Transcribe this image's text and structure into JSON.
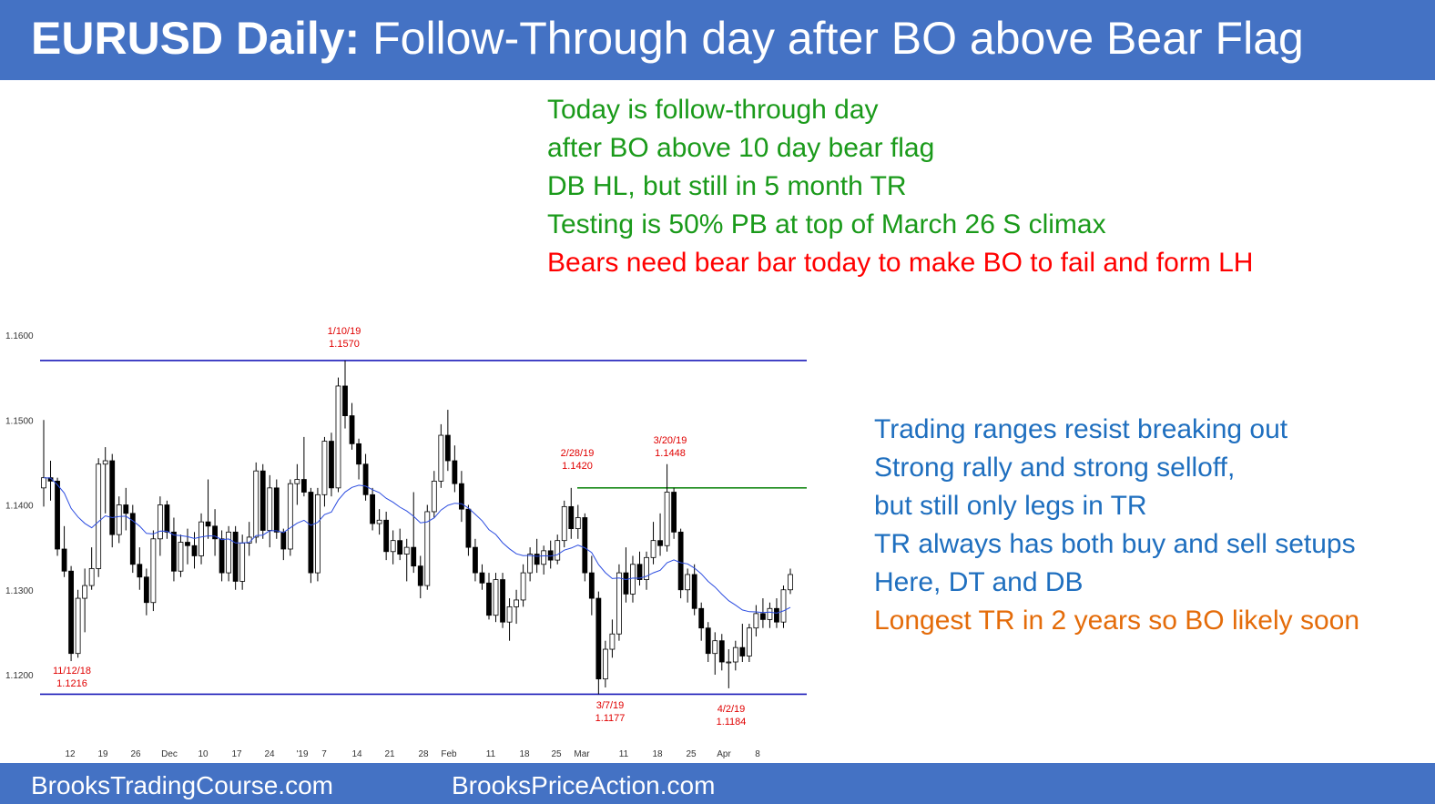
{
  "header": {
    "title_bold": "EURUSD Daily:",
    "title_rest": "Follow-Through day after BO above Bear Flag"
  },
  "notes_top": [
    {
      "text": "Today is follow-through day",
      "color": "#1a9a1a"
    },
    {
      "text": "after BO above 10 day bear flag",
      "color": "#1a9a1a"
    },
    {
      "text": "DB HL, but still in 5 month TR",
      "color": "#1a9a1a"
    },
    {
      "text": "Testing is 50% PB at top of March 26 S climax",
      "color": "#1a9a1a"
    },
    {
      "text": "Bears need bear bar today to make BO to fail and form LH",
      "color": "#ff0000"
    }
  ],
  "notes_right": [
    {
      "text": "Trading ranges resist breaking out",
      "color": "#1f6fbf"
    },
    {
      "text": "Strong rally and strong selloff,",
      "color": "#1f6fbf"
    },
    {
      "text": "but still only legs in TR",
      "color": "#1f6fbf"
    },
    {
      "text": "TR always has both buy and sell setups",
      "color": "#1f6fbf"
    },
    {
      "text": "Here, DT and DB",
      "color": "#1f6fbf"
    },
    {
      "text": "Longest TR in 2 years so BO likely soon",
      "color": "#e46c0a"
    }
  ],
  "footer": {
    "left": "BrooksTradingCourse.com",
    "right": "BrooksPriceAction.com"
  },
  "chart_data": {
    "type": "candlestick",
    "ylim": [
      1.1165,
      1.1615
    ],
    "y_ticks": [
      "1.1200",
      "1.1300",
      "1.1400",
      "1.1500",
      "1.1600"
    ],
    "x_ticks": [
      "12",
      "19",
      "26",
      "Dec",
      "10",
      "17",
      "24",
      "'19",
      "7",
      "14",
      "21",
      "28",
      "Feb",
      "11",
      "18",
      "25",
      "Mar",
      "11",
      "18",
      "25",
      "Apr",
      "8"
    ],
    "colors": {
      "bull": "#ffffff",
      "bear": "#000000",
      "ema": "#2b4ce0",
      "range_line": "#1a1ab8",
      "flag_line": "#1a8a1a",
      "annotation": "#e00000"
    },
    "levels": [
      {
        "name": "range-top",
        "value": 1.157
      },
      {
        "name": "range-bottom",
        "value": 1.1177
      },
      {
        "name": "bear-flag-top",
        "value": 1.142
      }
    ],
    "annotations": [
      {
        "date": "1/10/19",
        "price": "1.1570"
      },
      {
        "date": "11/12/18",
        "price": "1.1216"
      },
      {
        "date": "2/28/19",
        "price": "1.1420"
      },
      {
        "date": "3/20/19",
        "price": "1.1448"
      },
      {
        "date": "3/7/19",
        "price": "1.1177"
      },
      {
        "date": "4/2/19",
        "price": "1.1184"
      }
    ],
    "candles": [
      [
        1.142,
        1.15,
        1.1398,
        1.1432
      ],
      [
        1.1432,
        1.1452,
        1.1405,
        1.1428
      ],
      [
        1.1428,
        1.1432,
        1.134,
        1.1348
      ],
      [
        1.1348,
        1.1375,
        1.1315,
        1.1322
      ],
      [
        1.1322,
        1.1328,
        1.1216,
        1.1225
      ],
      [
        1.1225,
        1.13,
        1.122,
        1.129
      ],
      [
        1.129,
        1.1325,
        1.125,
        1.1305
      ],
      [
        1.1305,
        1.135,
        1.13,
        1.1325
      ],
      [
        1.1325,
        1.1455,
        1.1315,
        1.1448
      ],
      [
        1.1448,
        1.1468,
        1.139,
        1.1452
      ],
      [
        1.1452,
        1.146,
        1.135,
        1.1365
      ],
      [
        1.1365,
        1.141,
        1.1355,
        1.14
      ],
      [
        1.14,
        1.142,
        1.137,
        1.139
      ],
      [
        1.139,
        1.14,
        1.132,
        1.133
      ],
      [
        1.133,
        1.135,
        1.13,
        1.1315
      ],
      [
        1.1315,
        1.1325,
        1.127,
        1.1285
      ],
      [
        1.1285,
        1.137,
        1.1275,
        1.136
      ],
      [
        1.136,
        1.141,
        1.134,
        1.14
      ],
      [
        1.14,
        1.1405,
        1.136,
        1.1368
      ],
      [
        1.1368,
        1.1385,
        1.131,
        1.1322
      ],
      [
        1.1322,
        1.1365,
        1.1315,
        1.1356
      ],
      [
        1.1356,
        1.1372,
        1.133,
        1.1352
      ],
      [
        1.1352,
        1.1368,
        1.1325,
        1.134
      ],
      [
        1.134,
        1.139,
        1.133,
        1.138
      ],
      [
        1.138,
        1.143,
        1.136,
        1.1375
      ],
      [
        1.1375,
        1.1395,
        1.134,
        1.136
      ],
      [
        1.136,
        1.137,
        1.131,
        1.132
      ],
      [
        1.132,
        1.1375,
        1.131,
        1.1368
      ],
      [
        1.1368,
        1.1375,
        1.13,
        1.131
      ],
      [
        1.131,
        1.1365,
        1.13,
        1.1355
      ],
      [
        1.1355,
        1.138,
        1.134,
        1.1362
      ],
      [
        1.1362,
        1.145,
        1.1355,
        1.144
      ],
      [
        1.144,
        1.1448,
        1.136,
        1.137
      ],
      [
        1.137,
        1.1435,
        1.135,
        1.142
      ],
      [
        1.142,
        1.143,
        1.136,
        1.1368
      ],
      [
        1.1368,
        1.1372,
        1.1335,
        1.1348
      ],
      [
        1.1348,
        1.143,
        1.134,
        1.1425
      ],
      [
        1.1425,
        1.1448,
        1.14,
        1.143
      ],
      [
        1.143,
        1.148,
        1.141,
        1.1415
      ],
      [
        1.1415,
        1.142,
        1.1308,
        1.132
      ],
      [
        1.132,
        1.142,
        1.131,
        1.1412
      ],
      [
        1.1412,
        1.148,
        1.1398,
        1.1475
      ],
      [
        1.1475,
        1.1485,
        1.141,
        1.142
      ],
      [
        1.142,
        1.155,
        1.1415,
        1.154
      ],
      [
        1.154,
        1.157,
        1.149,
        1.1505
      ],
      [
        1.1505,
        1.152,
        1.1465,
        1.1472
      ],
      [
        1.1472,
        1.1478,
        1.143,
        1.1448
      ],
      [
        1.1448,
        1.146,
        1.1405,
        1.1412
      ],
      [
        1.1412,
        1.142,
        1.137,
        1.1378
      ],
      [
        1.1378,
        1.1395,
        1.1365,
        1.1382
      ],
      [
        1.1382,
        1.1392,
        1.1335,
        1.1345
      ],
      [
        1.1345,
        1.137,
        1.133,
        1.1358
      ],
      [
        1.1358,
        1.1372,
        1.1335,
        1.1342
      ],
      [
        1.1342,
        1.136,
        1.131,
        1.135
      ],
      [
        1.135,
        1.1415,
        1.132,
        1.1328
      ],
      [
        1.1328,
        1.134,
        1.129,
        1.1305
      ],
      [
        1.1305,
        1.14,
        1.13,
        1.1392
      ],
      [
        1.1392,
        1.144,
        1.1385,
        1.1428
      ],
      [
        1.1428,
        1.1495,
        1.142,
        1.1482
      ],
      [
        1.1482,
        1.1512,
        1.144,
        1.1452
      ],
      [
        1.1452,
        1.147,
        1.1415,
        1.1425
      ],
      [
        1.1425,
        1.144,
        1.138,
        1.1395
      ],
      [
        1.1395,
        1.14,
        1.134,
        1.135
      ],
      [
        1.135,
        1.136,
        1.131,
        1.132
      ],
      [
        1.132,
        1.133,
        1.13,
        1.1308
      ],
      [
        1.1308,
        1.132,
        1.1265,
        1.127
      ],
      [
        1.127,
        1.132,
        1.1262,
        1.1312
      ],
      [
        1.1312,
        1.132,
        1.1255,
        1.1262
      ],
      [
        1.1262,
        1.129,
        1.124,
        1.128
      ],
      [
        1.128,
        1.13,
        1.126,
        1.1288
      ],
      [
        1.1288,
        1.133,
        1.128,
        1.132
      ],
      [
        1.132,
        1.135,
        1.131,
        1.1342
      ],
      [
        1.1342,
        1.136,
        1.132,
        1.133
      ],
      [
        1.133,
        1.1352,
        1.1318,
        1.1346
      ],
      [
        1.1346,
        1.1358,
        1.1325,
        1.1335
      ],
      [
        1.1335,
        1.1365,
        1.133,
        1.1358
      ],
      [
        1.1358,
        1.1405,
        1.135,
        1.1398
      ],
      [
        1.1398,
        1.142,
        1.136,
        1.1372
      ],
      [
        1.1372,
        1.14,
        1.136,
        1.1385
      ],
      [
        1.1385,
        1.139,
        1.131,
        1.132
      ],
      [
        1.132,
        1.134,
        1.127,
        1.129
      ],
      [
        1.129,
        1.1298,
        1.1177,
        1.1195
      ],
      [
        1.1195,
        1.124,
        1.1185,
        1.123
      ],
      [
        1.123,
        1.1265,
        1.122,
        1.1248
      ],
      [
        1.1248,
        1.133,
        1.124,
        1.132
      ],
      [
        1.132,
        1.135,
        1.1285,
        1.1295
      ],
      [
        1.1295,
        1.134,
        1.1285,
        1.133
      ],
      [
        1.133,
        1.1345,
        1.1305,
        1.1312
      ],
      [
        1.1312,
        1.1345,
        1.13,
        1.1338
      ],
      [
        1.1338,
        1.138,
        1.133,
        1.1358
      ],
      [
        1.1358,
        1.139,
        1.134,
        1.1352
      ],
      [
        1.1352,
        1.1448,
        1.1345,
        1.1415
      ],
      [
        1.1415,
        1.142,
        1.136,
        1.1368
      ],
      [
        1.1368,
        1.1372,
        1.129,
        1.13
      ],
      [
        1.13,
        1.1325,
        1.1285,
        1.1318
      ],
      [
        1.1318,
        1.133,
        1.127,
        1.1278
      ],
      [
        1.1278,
        1.1285,
        1.124,
        1.1255
      ],
      [
        1.1255,
        1.1262,
        1.1215,
        1.1225
      ],
      [
        1.1225,
        1.125,
        1.12,
        1.124
      ],
      [
        1.124,
        1.1248,
        1.1205,
        1.1215
      ],
      [
        1.1215,
        1.123,
        1.1184,
        1.1215
      ],
      [
        1.1215,
        1.124,
        1.1205,
        1.1232
      ],
      [
        1.1232,
        1.126,
        1.1215,
        1.1222
      ],
      [
        1.1222,
        1.126,
        1.1215,
        1.1255
      ],
      [
        1.1255,
        1.1282,
        1.1245,
        1.1272
      ],
      [
        1.1272,
        1.129,
        1.1255,
        1.1265
      ],
      [
        1.1265,
        1.1285,
        1.1255,
        1.1278
      ],
      [
        1.1278,
        1.129,
        1.1255,
        1.1262
      ],
      [
        1.1262,
        1.1305,
        1.1255,
        1.13
      ],
      [
        1.13,
        1.1325,
        1.1295,
        1.1318
      ]
    ]
  }
}
